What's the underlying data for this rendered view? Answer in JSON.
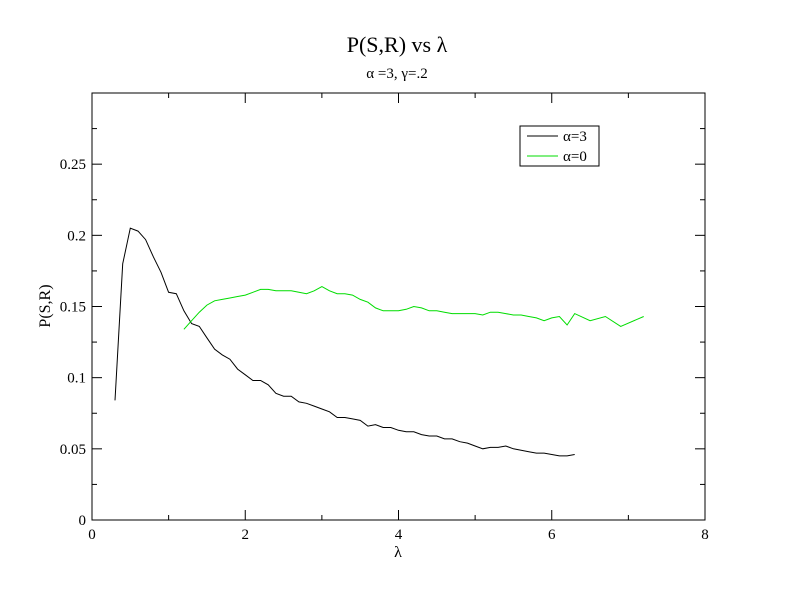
{
  "chart_data": {
    "type": "line",
    "title": "P(S,R) vs λ",
    "subtitle": "α =3, γ=.2",
    "xlabel": "λ",
    "ylabel": "P(S,R)",
    "xlim": [
      0,
      8
    ],
    "ylim": [
      0,
      0.3
    ],
    "xticks": [
      0,
      2,
      4,
      6,
      8
    ],
    "xtick_labels": [
      "0",
      "2",
      "4",
      "6",
      "8"
    ],
    "yticks": [
      0,
      0.05,
      0.1,
      0.15,
      0.2,
      0.25
    ],
    "ytick_labels": [
      "0",
      "0.05",
      "0.1",
      "0.15",
      "0.2",
      "0.25"
    ],
    "grid": false,
    "legend_position": "top-right",
    "series": [
      {
        "name": "α=3",
        "color": "#000000",
        "points": [
          [
            0.3,
            0.084
          ],
          [
            0.4,
            0.18
          ],
          [
            0.5,
            0.205
          ],
          [
            0.6,
            0.203
          ],
          [
            0.7,
            0.197
          ],
          [
            0.8,
            0.185
          ],
          [
            0.9,
            0.174
          ],
          [
            1.0,
            0.16
          ],
          [
            1.1,
            0.159
          ],
          [
            1.2,
            0.147
          ],
          [
            1.3,
            0.138
          ],
          [
            1.4,
            0.136
          ],
          [
            1.5,
            0.128
          ],
          [
            1.6,
            0.12
          ],
          [
            1.7,
            0.116
          ],
          [
            1.8,
            0.113
          ],
          [
            1.9,
            0.106
          ],
          [
            2.0,
            0.102
          ],
          [
            2.1,
            0.098
          ],
          [
            2.2,
            0.098
          ],
          [
            2.3,
            0.095
          ],
          [
            2.4,
            0.089
          ],
          [
            2.5,
            0.087
          ],
          [
            2.6,
            0.087
          ],
          [
            2.7,
            0.083
          ],
          [
            2.8,
            0.082
          ],
          [
            2.9,
            0.08
          ],
          [
            3.0,
            0.078
          ],
          [
            3.1,
            0.076
          ],
          [
            3.2,
            0.072
          ],
          [
            3.3,
            0.072
          ],
          [
            3.4,
            0.071
          ],
          [
            3.5,
            0.07
          ],
          [
            3.6,
            0.066
          ],
          [
            3.7,
            0.067
          ],
          [
            3.8,
            0.065
          ],
          [
            3.9,
            0.065
          ],
          [
            4.0,
            0.063
          ],
          [
            4.1,
            0.062
          ],
          [
            4.2,
            0.062
          ],
          [
            4.3,
            0.06
          ],
          [
            4.4,
            0.059
          ],
          [
            4.5,
            0.059
          ],
          [
            4.6,
            0.057
          ],
          [
            4.7,
            0.057
          ],
          [
            4.8,
            0.055
          ],
          [
            4.9,
            0.054
          ],
          [
            5.0,
            0.052
          ],
          [
            5.1,
            0.05
          ],
          [
            5.2,
            0.051
          ],
          [
            5.3,
            0.051
          ],
          [
            5.4,
            0.052
          ],
          [
            5.5,
            0.05
          ],
          [
            5.6,
            0.049
          ],
          [
            5.7,
            0.048
          ],
          [
            5.8,
            0.047
          ],
          [
            5.9,
            0.047
          ],
          [
            6.0,
            0.046
          ],
          [
            6.1,
            0.045
          ],
          [
            6.2,
            0.045
          ],
          [
            6.3,
            0.046
          ]
        ]
      },
      {
        "name": "α=0",
        "color": "#00dd00",
        "points": [
          [
            1.2,
            0.134
          ],
          [
            1.3,
            0.14
          ],
          [
            1.4,
            0.146
          ],
          [
            1.5,
            0.151
          ],
          [
            1.6,
            0.154
          ],
          [
            1.7,
            0.155
          ],
          [
            1.8,
            0.156
          ],
          [
            1.9,
            0.157
          ],
          [
            2.0,
            0.158
          ],
          [
            2.1,
            0.16
          ],
          [
            2.2,
            0.162
          ],
          [
            2.3,
            0.162
          ],
          [
            2.4,
            0.161
          ],
          [
            2.5,
            0.161
          ],
          [
            2.6,
            0.161
          ],
          [
            2.7,
            0.16
          ],
          [
            2.8,
            0.159
          ],
          [
            2.9,
            0.161
          ],
          [
            3.0,
            0.164
          ],
          [
            3.1,
            0.161
          ],
          [
            3.2,
            0.159
          ],
          [
            3.3,
            0.159
          ],
          [
            3.4,
            0.158
          ],
          [
            3.5,
            0.155
          ],
          [
            3.6,
            0.153
          ],
          [
            3.7,
            0.149
          ],
          [
            3.8,
            0.147
          ],
          [
            3.9,
            0.147
          ],
          [
            4.0,
            0.147
          ],
          [
            4.1,
            0.148
          ],
          [
            4.2,
            0.15
          ],
          [
            4.3,
            0.149
          ],
          [
            4.4,
            0.147
          ],
          [
            4.5,
            0.147
          ],
          [
            4.6,
            0.146
          ],
          [
            4.7,
            0.145
          ],
          [
            4.8,
            0.145
          ],
          [
            4.9,
            0.145
          ],
          [
            5.0,
            0.145
          ],
          [
            5.1,
            0.144
          ],
          [
            5.2,
            0.146
          ],
          [
            5.3,
            0.146
          ],
          [
            5.4,
            0.145
          ],
          [
            5.5,
            0.144
          ],
          [
            5.6,
            0.144
          ],
          [
            5.7,
            0.143
          ],
          [
            5.8,
            0.142
          ],
          [
            5.9,
            0.14
          ],
          [
            6.0,
            0.142
          ],
          [
            6.1,
            0.143
          ],
          [
            6.2,
            0.137
          ],
          [
            6.3,
            0.145
          ],
          [
            6.5,
            0.14
          ],
          [
            6.7,
            0.143
          ],
          [
            6.9,
            0.136
          ],
          [
            7.2,
            0.143
          ]
        ]
      }
    ]
  }
}
